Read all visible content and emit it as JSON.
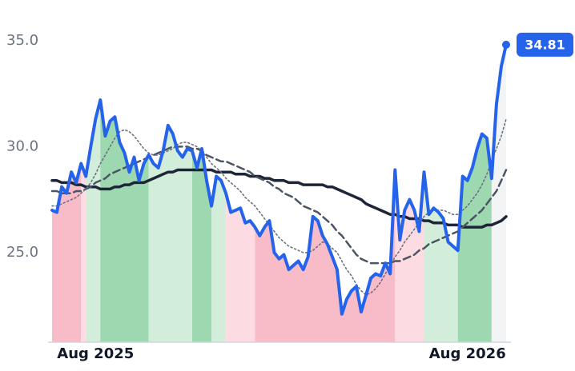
{
  "chart_data": {
    "type": "line",
    "categories": [
      null,
      null,
      null,
      null,
      null,
      null,
      null,
      null,
      null,
      "Aug 2025",
      null,
      null,
      null,
      null,
      null,
      null,
      null,
      null,
      null,
      null,
      null,
      null,
      null,
      null,
      null,
      null,
      null,
      null,
      null,
      null,
      null,
      null,
      null,
      null,
      null,
      null,
      null,
      null,
      null,
      null,
      null,
      null,
      null,
      null,
      null,
      null,
      null,
      null,
      null,
      null,
      null,
      null,
      null,
      null,
      null,
      null,
      null,
      null,
      null,
      null,
      null,
      null,
      null,
      null,
      null,
      null,
      null,
      null,
      null,
      null,
      null,
      null,
      null,
      null,
      null,
      null,
      null,
      null,
      null,
      null,
      null,
      null,
      null,
      null,
      null,
      null,
      "Aug 2026",
      null,
      null,
      null,
      null,
      null,
      null,
      null,
      null
    ],
    "series": [
      {
        "color": "#1e2538",
        "style": "solid",
        "values": [
          28.4,
          28.4,
          28.3,
          28.3,
          28.3,
          28.2,
          28.2,
          28.1,
          28.1,
          28.1,
          28.0,
          28.0,
          28.0,
          28.1,
          28.1,
          28.2,
          28.2,
          28.3,
          28.3,
          28.3,
          28.4,
          28.5,
          28.6,
          28.7,
          28.8,
          28.8,
          28.9,
          28.9,
          28.9,
          28.9,
          28.9,
          28.9,
          28.9,
          28.9,
          28.8,
          28.8,
          28.8,
          28.8,
          28.7,
          28.7,
          28.7,
          28.6,
          28.6,
          28.6,
          28.5,
          28.5,
          28.4,
          28.4,
          28.4,
          28.3,
          28.3,
          28.3,
          28.2,
          28.2,
          28.2,
          28.2,
          28.2,
          28.1,
          28.1,
          28.0,
          27.9,
          27.8,
          27.7,
          27.6,
          27.5,
          27.3,
          27.2,
          27.1,
          27.0,
          26.9,
          26.8,
          26.8,
          26.7,
          26.7,
          26.6,
          26.6,
          26.6,
          26.5,
          26.5,
          26.4,
          26.4,
          26.4,
          26.3,
          26.3,
          26.3,
          26.2,
          26.2,
          26.2,
          26.2,
          26.2,
          26.3,
          26.3,
          26.4,
          26.5,
          26.7
        ]
      },
      {
        "color": "#4b5563",
        "style": "dashed",
        "values": [
          27.9,
          27.9,
          27.8,
          27.8,
          27.8,
          27.9,
          27.9,
          28.0,
          28.1,
          28.3,
          28.4,
          28.5,
          28.7,
          28.8,
          28.9,
          29.0,
          29.1,
          29.2,
          29.3,
          29.4,
          29.5,
          29.6,
          29.7,
          29.8,
          29.9,
          30.0,
          30.0,
          30.0,
          30.0,
          29.9,
          29.9,
          29.8,
          29.6,
          29.5,
          29.4,
          29.3,
          29.3,
          29.2,
          29.1,
          29.0,
          28.9,
          28.8,
          28.6,
          28.5,
          28.4,
          28.3,
          28.1,
          28.0,
          27.8,
          27.7,
          27.6,
          27.4,
          27.2,
          27.1,
          27.0,
          26.9,
          26.7,
          26.5,
          26.3,
          26.0,
          25.8,
          25.5,
          25.2,
          24.9,
          24.7,
          24.6,
          24.5,
          24.5,
          24.5,
          24.5,
          24.5,
          24.6,
          24.6,
          24.7,
          24.8,
          24.9,
          25.1,
          25.2,
          25.4,
          25.5,
          25.6,
          25.7,
          25.8,
          25.9,
          26.0,
          26.2,
          26.4,
          26.6,
          26.8,
          27.0,
          27.3,
          27.6,
          27.9,
          28.4,
          28.9
        ]
      },
      {
        "color": "#6b7280",
        "style": "dotted",
        "values": [
          27.2,
          27.2,
          27.3,
          27.4,
          27.5,
          27.6,
          27.8,
          28.0,
          28.3,
          28.7,
          29.2,
          29.6,
          30.0,
          30.4,
          30.7,
          30.8,
          30.7,
          30.5,
          30.2,
          29.9,
          29.7,
          29.6,
          29.6,
          29.7,
          29.8,
          29.9,
          30.1,
          30.2,
          30.2,
          30.1,
          30.0,
          29.8,
          29.5,
          29.2,
          29.0,
          28.8,
          28.5,
          28.3,
          28.1,
          27.9,
          27.6,
          27.4,
          27.2,
          26.9,
          26.6,
          26.3,
          26.0,
          25.7,
          25.5,
          25.3,
          25.2,
          25.1,
          25.0,
          25.0,
          25.1,
          25.3,
          25.5,
          25.4,
          25.2,
          25.0,
          24.6,
          24.2,
          23.9,
          23.5,
          23.2,
          23.0,
          23.1,
          23.3,
          23.6,
          24.0,
          24.4,
          24.8,
          25.1,
          25.5,
          25.8,
          26.1,
          26.4,
          26.7,
          26.9,
          27.0,
          27.0,
          27.0,
          26.9,
          26.8,
          26.8,
          27.0,
          27.2,
          27.5,
          27.8,
          28.2,
          28.7,
          29.3,
          29.9,
          30.5,
          31.3
        ]
      },
      {
        "color": "#2563eb",
        "style": "price",
        "values": [
          27.0,
          26.9,
          28.1,
          27.8,
          28.8,
          28.3,
          29.2,
          28.6,
          30.0,
          31.3,
          32.2,
          30.5,
          31.2,
          31.4,
          30.2,
          29.7,
          28.8,
          29.5,
          28.4,
          29.2,
          29.6,
          29.2,
          29.0,
          29.8,
          31.0,
          30.6,
          29.8,
          29.5,
          29.9,
          29.8,
          29.0,
          29.9,
          28.4,
          27.2,
          28.6,
          28.4,
          27.8,
          26.9,
          27.0,
          27.1,
          26.4,
          26.5,
          26.2,
          25.8,
          26.2,
          26.5,
          25.0,
          24.7,
          24.9,
          24.2,
          24.4,
          24.6,
          24.2,
          24.8,
          26.7,
          26.5,
          25.8,
          25.4,
          24.8,
          24.2,
          22.1,
          22.8,
          23.2,
          23.4,
          22.2,
          23.0,
          23.8,
          24.0,
          23.9,
          24.5,
          24.0,
          28.9,
          25.6,
          27.0,
          27.5,
          27.0,
          26.0,
          28.8,
          26.8,
          27.1,
          26.9,
          26.6,
          25.5,
          25.3,
          25.1,
          28.6,
          28.4,
          29.0,
          29.9,
          30.6,
          30.4,
          28.5,
          32.0,
          33.8,
          34.81
        ]
      }
    ],
    "regions": [
      {
        "from": 0,
        "to": 6,
        "color": "#f8bcc8"
      },
      {
        "from": 6,
        "to": 7,
        "color": "#fcdce2"
      },
      {
        "from": 7,
        "to": 10,
        "color": "#d2eedb"
      },
      {
        "from": 10,
        "to": 20,
        "color": "#9dd8b1"
      },
      {
        "from": 20,
        "to": 29,
        "color": "#d2eedb"
      },
      {
        "from": 29,
        "to": 33,
        "color": "#9dd8b1"
      },
      {
        "from": 33,
        "to": 36,
        "color": "#d2eedb"
      },
      {
        "from": 36,
        "to": 42,
        "color": "#fcdce2"
      },
      {
        "from": 42,
        "to": 71,
        "color": "#f8bcc8"
      },
      {
        "from": 71,
        "to": 77,
        "color": "#fcdce2"
      },
      {
        "from": 77,
        "to": 84,
        "color": "#d2eedb"
      },
      {
        "from": 84,
        "to": 91,
        "color": "#9dd8b1"
      },
      {
        "from": 91,
        "to": 94,
        "color": "#f3f4f6"
      }
    ],
    "ylim": [
      20.77,
      36.92
    ],
    "yticks": [
      {
        "value": 25,
        "label": "25.0"
      },
      {
        "value": 30,
        "label": "30.0"
      },
      {
        "value": 35,
        "label": "35.0"
      }
    ],
    "grid": false
  }
}
